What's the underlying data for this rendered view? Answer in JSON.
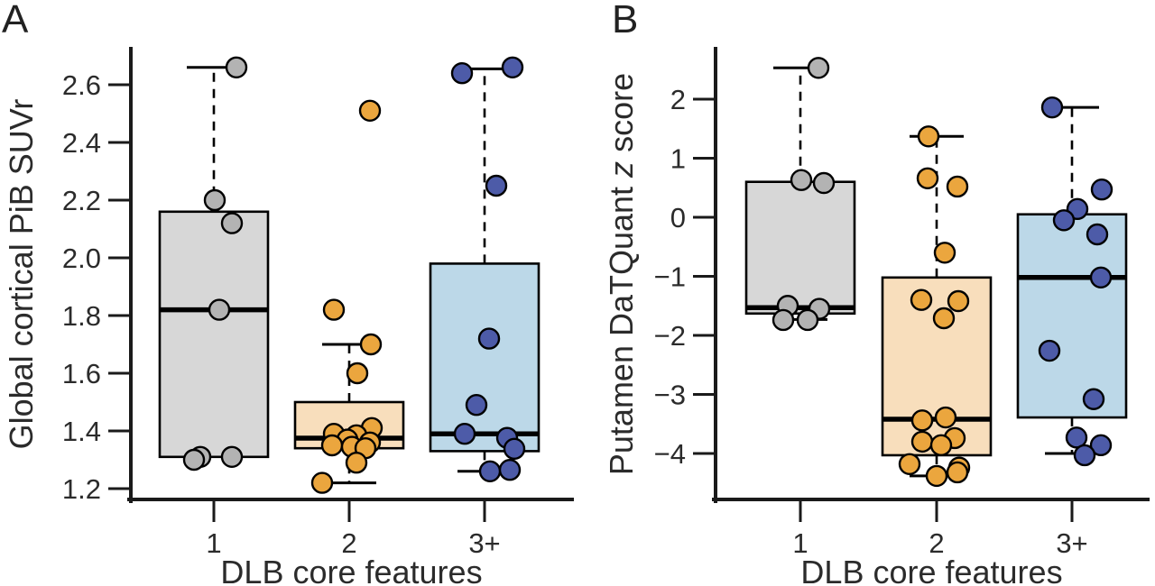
{
  "figure": {
    "panel_letters": [
      "A",
      "B"
    ],
    "xlabel": "DLB core features",
    "categories": [
      "1",
      "2",
      "3+"
    ]
  },
  "chart_data": [
    {
      "type": "boxplot_with_points",
      "panel_letter": "A",
      "xlabel": "DLB core features",
      "ylabel": "Global cortical PiB SUVr",
      "ylabel_segments": [
        {
          "text": "Global cortical PiB SUVr",
          "italic": false
        }
      ],
      "categories": [
        "1",
        "2",
        "3+"
      ],
      "ylim": [
        1.15,
        2.72
      ],
      "grid": false,
      "yticks": [
        {
          "v": 2.6,
          "label": "2.6"
        },
        {
          "v": 2.4,
          "label": "2.4"
        },
        {
          "v": 2.2,
          "label": "2.2"
        },
        {
          "v": 2.0,
          "label": "2.0"
        },
        {
          "v": 1.8,
          "label": "1.8"
        },
        {
          "v": 1.6,
          "label": "1.6"
        },
        {
          "v": 1.4,
          "label": "1.4"
        },
        {
          "v": 1.2,
          "label": "1.2"
        }
      ],
      "groups": [
        {
          "category": "1",
          "box_fill": "#d7d7d7",
          "point_fill": "#b3b3b3",
          "box": {
            "q1": 1.31,
            "median": 1.82,
            "q3": 2.16,
            "whisker_low": 1.31,
            "whisker_high": 2.66
          },
          "points": [
            [
              2.66,
              25
            ],
            [
              2.2,
              1
            ],
            [
              2.12,
              20
            ],
            [
              1.82,
              6
            ],
            [
              1.31,
              -15
            ],
            [
              1.3,
              -22
            ],
            [
              1.31,
              20
            ]
          ]
        },
        {
          "category": "2",
          "box_fill": "#f8debc",
          "point_fill": "#eba63e",
          "box": {
            "q1": 1.34,
            "median": 1.375,
            "q3": 1.5,
            "whisker_low": 1.22,
            "whisker_high": 1.7
          },
          "points": [
            [
              2.51,
              23
            ],
            [
              1.82,
              -17
            ],
            [
              1.7,
              24
            ],
            [
              1.6,
              9
            ],
            [
              1.41,
              25
            ],
            [
              1.39,
              -17
            ],
            [
              1.385,
              8
            ],
            [
              1.37,
              -2
            ],
            [
              1.36,
              23
            ],
            [
              1.35,
              -19
            ],
            [
              1.345,
              3
            ],
            [
              1.34,
              18
            ],
            [
              1.29,
              8
            ],
            [
              1.22,
              -30
            ]
          ]
        },
        {
          "category": "3+",
          "box_fill": "#bcd8e8",
          "point_fill": "#4d5ba8",
          "box": {
            "q1": 1.33,
            "median": 1.39,
            "q3": 1.98,
            "whisker_low": 1.26,
            "whisker_high": 2.655
          },
          "points": [
            [
              2.64,
              -25
            ],
            [
              2.66,
              31
            ],
            [
              2.25,
              13
            ],
            [
              1.72,
              5
            ],
            [
              1.49,
              -9
            ],
            [
              1.39,
              -22
            ],
            [
              1.376,
              25
            ],
            [
              1.338,
              33
            ],
            [
              1.26,
              6
            ],
            [
              1.265,
              28
            ]
          ]
        }
      ]
    },
    {
      "type": "boxplot_with_points",
      "panel_letter": "B",
      "xlabel": "DLB core features",
      "ylabel": "Putamen DaTQuant z score",
      "ylabel_segments": [
        {
          "text": "Putamen DaTQuant ",
          "italic": false
        },
        {
          "text": "z",
          "italic": true
        },
        {
          "text": " score",
          "italic": false
        }
      ],
      "categories": [
        "1",
        "2",
        "3+"
      ],
      "ylim": [
        -4.82,
        2.84
      ],
      "grid": false,
      "yticks": [
        {
          "v": 2,
          "label": "2"
        },
        {
          "v": 1,
          "label": "1"
        },
        {
          "v": 0,
          "label": "0"
        },
        {
          "v": -1,
          "label": "−1"
        },
        {
          "v": -2,
          "label": "−2"
        },
        {
          "v": -3,
          "label": "−3"
        },
        {
          "v": -4,
          "label": "−4"
        }
      ],
      "groups": [
        {
          "category": "1",
          "box_fill": "#d7d7d7",
          "point_fill": "#b3b3b3",
          "box": {
            "q1": -1.63,
            "median": -1.53,
            "q3": 0.6,
            "whisker_low": -1.73,
            "whisker_high": 2.53
          },
          "points": [
            [
              2.53,
              20
            ],
            [
              0.63,
              1
            ],
            [
              0.58,
              26
            ],
            [
              -1.5,
              -14
            ],
            [
              -1.55,
              21
            ],
            [
              -1.74,
              -19
            ],
            [
              -1.74,
              8
            ]
          ]
        },
        {
          "category": "2",
          "box_fill": "#f8debc",
          "point_fill": "#eba63e",
          "box": {
            "q1": -4.03,
            "median": -3.42,
            "q3": -1.02,
            "whisker_low": -4.38,
            "whisker_high": 1.37
          },
          "points": [
            [
              1.37,
              -9
            ],
            [
              0.66,
              -10
            ],
            [
              0.52,
              23
            ],
            [
              -0.6,
              9
            ],
            [
              -1.4,
              -17
            ],
            [
              -1.42,
              24
            ],
            [
              -1.71,
              8
            ],
            [
              -3.39,
              10
            ],
            [
              -3.44,
              -16
            ],
            [
              -3.74,
              20
            ],
            [
              -3.8,
              -16
            ],
            [
              -3.86,
              5
            ],
            [
              -4.18,
              -30
            ],
            [
              -4.24,
              25
            ],
            [
              -4.32,
              23
            ],
            [
              -4.38,
              0
            ]
          ]
        },
        {
          "category": "3+",
          "box_fill": "#bcd8e8",
          "point_fill": "#4d5ba8",
          "box": {
            "q1": -3.39,
            "median": -1.02,
            "q3": 0.05,
            "whisker_low": -4.0,
            "whisker_high": 1.86
          },
          "points": [
            [
              1.86,
              -22
            ],
            [
              0.47,
              33
            ],
            [
              0.14,
              6
            ],
            [
              -0.05,
              -9
            ],
            [
              -0.29,
              28
            ],
            [
              -1.02,
              32
            ],
            [
              -2.26,
              -25
            ],
            [
              -3.08,
              24
            ],
            [
              -3.73,
              5
            ],
            [
              -3.86,
              32
            ],
            [
              -4.03,
              14
            ]
          ]
        }
      ]
    }
  ]
}
